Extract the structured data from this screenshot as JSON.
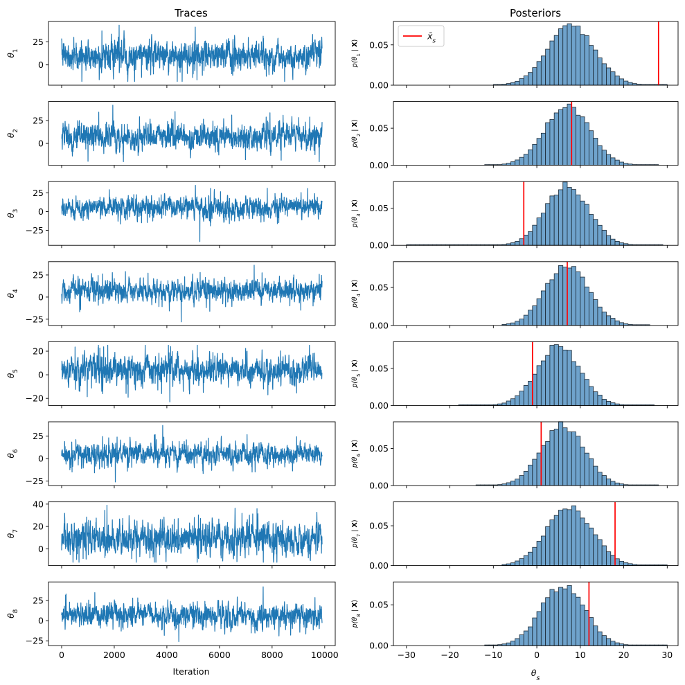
{
  "titles": {
    "traces": "Traces",
    "posteriors": "Posteriors"
  },
  "trace_xlabel": "Iteration",
  "posterior_xlabel_sym": "θ",
  "posterior_xlabel_sub": "s",
  "legend": {
    "label_sym": "x̄",
    "label_sub": "s",
    "color": "#ff0000",
    "placement": "upper-left"
  },
  "colors": {
    "trace": "#1f77b4",
    "hist_fill": "#6fa3cc",
    "hist_edge": "#1c2a36",
    "vline": "#ff0000"
  },
  "chart_data": [
    {
      "type": "line",
      "role": "trace-panels",
      "x_range": [
        0,
        9900
      ],
      "xlim": [
        -500,
        10400
      ],
      "xticks": [
        0,
        2000,
        4000,
        6000,
        8000,
        10000
      ],
      "xtick_labels": [
        "0",
        "2000",
        "4000",
        "6000",
        "8000",
        "10000"
      ],
      "panels": [
        {
          "ylabel_sub": "1",
          "mean": 10,
          "sd": 8,
          "min": -18,
          "max": 43,
          "ylim": [
            -22,
            47
          ],
          "yticks": [
            0,
            25
          ],
          "ytick_labels": [
            "0",
            "25"
          ]
        },
        {
          "ylabel_sub": "2",
          "mean": 7,
          "sd": 7,
          "min": -20,
          "max": 42,
          "ylim": [
            -24,
            46
          ],
          "yticks": [
            0,
            25
          ],
          "ytick_labels": [
            "0",
            "25"
          ]
        },
        {
          "ylabel_sub": "3",
          "mean": 5,
          "sd": 7,
          "min": -40,
          "max": 35,
          "ylim": [
            -45,
            40
          ],
          "yticks": [
            -25,
            0,
            25
          ],
          "ytick_labels": [
            "−25",
            "0",
            "25"
          ]
        },
        {
          "ylabel_sub": "4",
          "mean": 7,
          "sd": 6,
          "min": -28,
          "max": 36,
          "ylim": [
            -32,
            40
          ],
          "yticks": [
            -25,
            0,
            25
          ],
          "ytick_labels": [
            "−25",
            "0",
            "25"
          ]
        },
        {
          "ylabel_sub": "5",
          "mean": 4,
          "sd": 6,
          "min": -23,
          "max": 25,
          "ylim": [
            -26,
            28
          ],
          "yticks": [
            -20,
            0,
            20
          ],
          "ytick_labels": [
            "−20",
            "0",
            "20"
          ]
        },
        {
          "ylabel_sub": "6",
          "mean": 5,
          "sd": 6,
          "min": -26,
          "max": 37,
          "ylim": [
            -30,
            41
          ],
          "yticks": [
            -25,
            0,
            25
          ],
          "ytick_labels": [
            "−25",
            "0",
            "25"
          ]
        },
        {
          "ylabel_sub": "7",
          "mean": 9,
          "sd": 7,
          "min": -12,
          "max": 39,
          "ylim": [
            -15,
            42
          ],
          "yticks": [
            0,
            20,
            40
          ],
          "ytick_labels": [
            "0",
            "20",
            "40"
          ]
        },
        {
          "ylabel_sub": "8",
          "mean": 7,
          "sd": 7,
          "min": -26,
          "max": 42,
          "ylim": [
            -31,
            48
          ],
          "yticks": [
            -25,
            0,
            25
          ],
          "ytick_labels": [
            "−25",
            "0",
            "25"
          ]
        }
      ]
    },
    {
      "type": "bar",
      "role": "posterior-histograms",
      "xlim": [
        -33,
        32.5
      ],
      "xticks": [
        -30,
        -20,
        -10,
        0,
        10,
        20,
        30
      ],
      "xtick_labels": [
        "−30",
        "−20",
        "−10",
        "0",
        "10",
        "20",
        "30"
      ],
      "bin_width": 1.0,
      "yticks": [
        0,
        0.05
      ],
      "ytick_labels": [
        "0.00",
        "0.05"
      ],
      "panels": [
        {
          "ylabel_sub": "1",
          "mean": 8,
          "sd": 5.4,
          "peak": 0.074,
          "range": [
            -10,
            30
          ],
          "ylim": [
            0,
            0.079
          ],
          "vline": 28
        },
        {
          "ylabel_sub": "2",
          "mean": 7,
          "sd": 5.2,
          "peak": 0.08,
          "range": [
            -12,
            28
          ],
          "ylim": [
            0,
            0.086
          ],
          "vline": 8
        },
        {
          "ylabel_sub": "3",
          "mean": 7,
          "sd": 5.0,
          "peak": 0.081,
          "range": [
            -30,
            29
          ],
          "ylim": [
            0,
            0.086
          ],
          "vline": -3
        },
        {
          "ylabel_sub": "4",
          "mean": 7,
          "sd": 5.0,
          "peak": 0.08,
          "range": [
            -8,
            26
          ],
          "ylim": [
            0,
            0.084
          ],
          "vline": 7
        },
        {
          "ylabel_sub": "5",
          "mean": 5,
          "sd": 5.0,
          "peak": 0.081,
          "range": [
            -18,
            27
          ],
          "ylim": [
            0,
            0.086
          ],
          "vline": -1
        },
        {
          "ylabel_sub": "6",
          "mean": 6,
          "sd": 5.0,
          "peak": 0.081,
          "range": [
            -14,
            28
          ],
          "ylim": [
            0,
            0.086
          ],
          "vline": 1
        },
        {
          "ylabel_sub": "7",
          "mean": 7.5,
          "sd": 5.3,
          "peak": 0.075,
          "range": [
            -8,
            30
          ],
          "ylim": [
            0,
            0.08
          ],
          "vline": 18
        },
        {
          "ylabel_sub": "8",
          "mean": 6,
          "sd": 5.1,
          "peak": 0.073,
          "range": [
            -12,
            30
          ],
          "ylim": [
            0,
            0.078
          ],
          "vline": 12
        }
      ]
    }
  ]
}
